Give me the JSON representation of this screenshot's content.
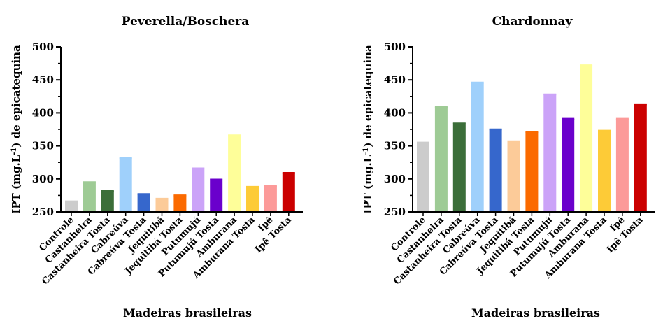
{
  "chart_data": [
    {
      "type": "bar",
      "title": "Peverella/Boschera",
      "xlabel": "Madeiras brasileiras",
      "ylabel_main": "IPT  (mg.L",
      "ylabel_sup": "-1",
      "ylabel_tail": ") de epicatequina",
      "ylim": [
        250,
        500
      ],
      "yticks": [
        "250",
        "300",
        "350",
        "400",
        "450",
        "500"
      ],
      "ytick_values": [
        250,
        300,
        350,
        400,
        450,
        500
      ],
      "categories": [
        "Controle",
        "Castanheira",
        "Castanheira Tosta",
        "Cabreúva",
        "Cabreúva Tosta",
        "Jequitibá",
        "Jequitibá Tosta",
        "Putumujú",
        "Putumujú Tosta",
        "Amburana",
        "Amburana Tosta",
        "Ipê",
        "Ipê Tosta"
      ],
      "values": [
        266,
        295,
        282,
        332,
        277,
        270,
        275,
        316,
        299,
        366,
        288,
        289,
        309
      ],
      "colors": [
        "#cccccc",
        "#9ecb95",
        "#3b6e39",
        "#9fd0fb",
        "#3667cc",
        "#fccb99",
        "#fb6a00",
        "#cba3f8",
        "#6a00cc",
        "#fefe99",
        "#fdcb37",
        "#fc9a99",
        "#cb0000"
      ]
    },
    {
      "type": "bar",
      "title": "Chardonnay",
      "xlabel": "Madeiras brasileiras",
      "ylabel_main": "IPT  (mg.L",
      "ylabel_sup": "-1",
      "ylabel_tail": ") de epicatequina",
      "ylim": [
        250,
        500
      ],
      "yticks": [
        "250",
        "300",
        "350",
        "400",
        "450",
        "500"
      ],
      "ytick_values": [
        250,
        300,
        350,
        400,
        450,
        500
      ],
      "categories": [
        "Controle",
        "Castanheira",
        "Castanheira Tosta",
        "Cabreúva",
        "Cabreúva Tosta",
        "Jequitibá",
        "Jequitibá Tosta",
        "Putumujú",
        "Putumujú Tosta",
        "Amburana",
        "Amburana Tosta",
        "Ipê",
        "Ipê Tosta"
      ],
      "values": [
        355,
        409,
        384,
        446,
        375,
        357,
        371,
        428,
        391,
        472,
        373,
        391,
        413
      ],
      "colors": [
        "#cccccc",
        "#9ecb95",
        "#3b6e39",
        "#9fd0fb",
        "#3667cc",
        "#fccb99",
        "#fb6a00",
        "#cba3f8",
        "#6a00cc",
        "#fefe99",
        "#fdcb37",
        "#fc9a99",
        "#cb0000"
      ]
    }
  ]
}
